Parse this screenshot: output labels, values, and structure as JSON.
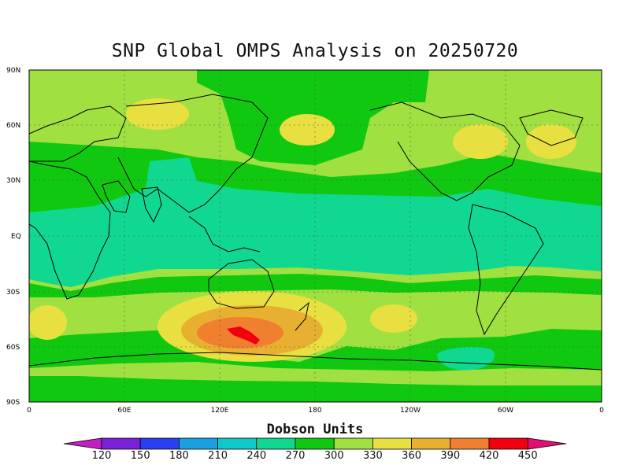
{
  "title": "SNP Global OMPS Analysis on 20250720",
  "lat_labels": [
    "90N",
    "60N",
    "30N",
    "EQ",
    "30S",
    "60S",
    "90S"
  ],
  "lon_labels": [
    "0",
    "60E",
    "120E",
    "180",
    "120W",
    "60W",
    "0"
  ],
  "colorbar": {
    "title": "Dobson Units",
    "labels": [
      "120",
      "150",
      "180",
      "210",
      "240",
      "270",
      "300",
      "330",
      "360",
      "390",
      "420",
      "450"
    ],
    "colors": [
      "#c020c0",
      "#7a20d8",
      "#2a40f0",
      "#1aa0e0",
      "#10c8c8",
      "#10d890",
      "#10c810",
      "#a0e040",
      "#e8e040",
      "#e8b030",
      "#f08030",
      "#f00010",
      "#e01070"
    ]
  },
  "field_colors": {
    "green_300": "#10c810",
    "lightgreen_330": "#a0e040",
    "teal_270": "#10d890",
    "yellow_360": "#e8e040",
    "orange_390": "#e8b030",
    "darkorange_420": "#f08030",
    "red_450": "#f00010"
  }
}
